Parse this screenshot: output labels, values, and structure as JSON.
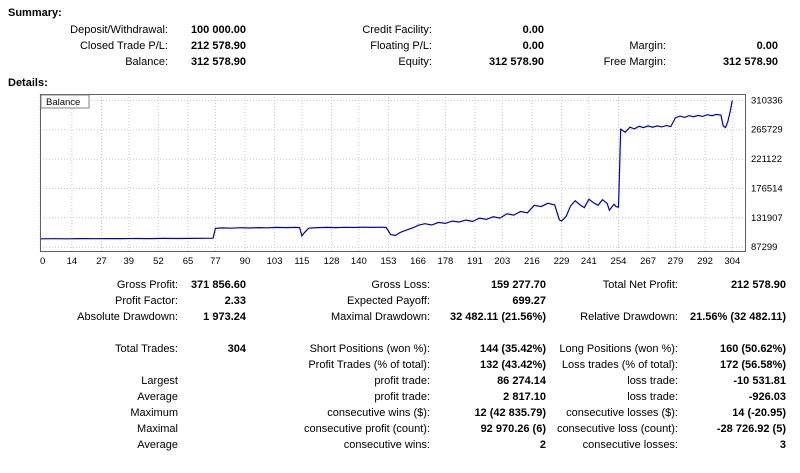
{
  "summary": {
    "heading": "Summary:",
    "rows": [
      [
        {
          "label": "Deposit/Withdrawal:",
          "value": "100 000.00"
        },
        {
          "label": "Credit Facility:",
          "value": "0.00"
        },
        {
          "label": "",
          "value": ""
        }
      ],
      [
        {
          "label": "Closed Trade P/L:",
          "value": "212 578.90"
        },
        {
          "label": "Floating P/L:",
          "value": "0.00"
        },
        {
          "label": "Margin:",
          "value": "0.00"
        }
      ],
      [
        {
          "label": "Balance:",
          "value": "312 578.90"
        },
        {
          "label": "Equity:",
          "value": "312 578.90"
        },
        {
          "label": "Free Margin:",
          "value": "312 578.90"
        }
      ]
    ]
  },
  "details": {
    "heading": "Details:"
  },
  "stats": {
    "rows": [
      [
        {
          "label": "Gross Profit:",
          "value": "371 856.60"
        },
        {
          "label": "Gross Loss:",
          "value": "159 277.70"
        },
        {
          "label": "Total Net Profit:",
          "value": "212 578.90"
        }
      ],
      [
        {
          "label": "Profit Factor:",
          "value": "2.33"
        },
        {
          "label": "Expected Payoff:",
          "value": "699.27"
        },
        {
          "label": "",
          "value": ""
        }
      ],
      [
        {
          "label": "Absolute Drawdown:",
          "value": "1 973.24"
        },
        {
          "label": "Maximal Drawdown:",
          "value": "32 482.11 (21.56%)"
        },
        {
          "label": "Relative Drawdown:",
          "value": "21.56% (32 482.11)"
        }
      ],
      [
        {
          "label": "",
          "value": ""
        },
        {
          "label": "",
          "value": ""
        },
        {
          "label": "",
          "value": ""
        }
      ],
      [
        {
          "label": "Total Trades:",
          "value": "304"
        },
        {
          "label": "Short Positions (won %):",
          "value": "144 (35.42%)"
        },
        {
          "label": "Long Positions (won %):",
          "value": "160 (50.62%)"
        }
      ],
      [
        {
          "label": "",
          "value": ""
        },
        {
          "label": "Profit Trades (% of total):",
          "value": "132 (43.42%)"
        },
        {
          "label": "Loss trades (% of total):",
          "value": "172 (56.58%)"
        }
      ],
      [
        {
          "label": "Largest",
          "value": ""
        },
        {
          "label": "profit trade:",
          "value": "86 274.14"
        },
        {
          "label": "loss trade:",
          "value": "-10 531.81"
        }
      ],
      [
        {
          "label": "Average",
          "value": ""
        },
        {
          "label": "profit trade:",
          "value": "2 817.10"
        },
        {
          "label": "loss trade:",
          "value": "-926.03"
        }
      ],
      [
        {
          "label": "Maximum",
          "value": ""
        },
        {
          "label": "consecutive wins ($):",
          "value": "12 (42 835.79)"
        },
        {
          "label": "consecutive losses ($):",
          "value": "14 (-20.95)"
        }
      ],
      [
        {
          "label": "Maximal",
          "value": ""
        },
        {
          "label": "consecutive profit (count):",
          "value": "92 970.26 (6)"
        },
        {
          "label": "consecutive loss (count):",
          "value": "-28 726.92 (5)"
        }
      ],
      [
        {
          "label": "Average",
          "value": ""
        },
        {
          "label": "consecutive wins:",
          "value": "2"
        },
        {
          "label": "consecutive losses:",
          "value": "3"
        }
      ]
    ]
  },
  "chart_data": {
    "type": "line",
    "title": "Balance",
    "xlabel": "",
    "ylabel": "",
    "legend": "Balance",
    "line_color": "#0000b8",
    "grid_color": "#c8c8c8",
    "border_color": "#606060",
    "xlim": [
      0,
      310
    ],
    "ylim": [
      80000,
      320000
    ],
    "x_ticks": [
      0,
      14,
      27,
      39,
      52,
      65,
      77,
      90,
      103,
      115,
      128,
      140,
      153,
      166,
      178,
      191,
      203,
      216,
      229,
      241,
      254,
      267,
      279,
      292,
      304
    ],
    "y_ticks": [
      87299,
      131907,
      176514,
      221122,
      265729,
      310336
    ],
    "series": [
      {
        "name": "Balance",
        "points": [
          [
            0,
            100000
          ],
          [
            6,
            100200
          ],
          [
            12,
            100100
          ],
          [
            18,
            100300
          ],
          [
            24,
            100200
          ],
          [
            30,
            100400
          ],
          [
            36,
            100300
          ],
          [
            42,
            100500
          ],
          [
            48,
            100400
          ],
          [
            54,
            100600
          ],
          [
            60,
            100500
          ],
          [
            66,
            100700
          ],
          [
            72,
            100800
          ],
          [
            76,
            100900
          ],
          [
            77,
            115800
          ],
          [
            80,
            116600
          ],
          [
            84,
            116200
          ],
          [
            88,
            116900
          ],
          [
            92,
            116500
          ],
          [
            96,
            117100
          ],
          [
            100,
            116800
          ],
          [
            104,
            117300
          ],
          [
            108,
            117000
          ],
          [
            112,
            117400
          ],
          [
            114,
            117100
          ],
          [
            115,
            104500
          ],
          [
            116,
            109000
          ],
          [
            118,
            116200
          ],
          [
            122,
            117000
          ],
          [
            126,
            117300
          ],
          [
            130,
            117100
          ],
          [
            134,
            117500
          ],
          [
            138,
            117200
          ],
          [
            142,
            117600
          ],
          [
            146,
            117300
          ],
          [
            150,
            117600
          ],
          [
            152,
            117200
          ],
          [
            154,
            106500
          ],
          [
            156,
            105000
          ],
          [
            158,
            109500
          ],
          [
            161,
            113500
          ],
          [
            164,
            117000
          ],
          [
            166,
            120500
          ],
          [
            169,
            123000
          ],
          [
            172,
            121000
          ],
          [
            175,
            125000
          ],
          [
            178,
            123500
          ],
          [
            181,
            127000
          ],
          [
            184,
            125500
          ],
          [
            187,
            128500
          ],
          [
            190,
            126500
          ],
          [
            193,
            131500
          ],
          [
            196,
            129500
          ],
          [
            199,
            133500
          ],
          [
            202,
            131500
          ],
          [
            205,
            138000
          ],
          [
            208,
            136000
          ],
          [
            211,
            141500
          ],
          [
            214,
            139500
          ],
          [
            217,
            151000
          ],
          [
            220,
            149000
          ],
          [
            223,
            154000
          ],
          [
            226,
            151500
          ],
          [
            228,
            129000
          ],
          [
            229,
            127000
          ],
          [
            231,
            134000
          ],
          [
            233,
            150000
          ],
          [
            235,
            158000
          ],
          [
            237,
            152000
          ],
          [
            239,
            147500
          ],
          [
            241,
            160000
          ],
          [
            243,
            155000
          ],
          [
            245,
            151000
          ],
          [
            247,
            159500
          ],
          [
            249,
            154000
          ],
          [
            250,
            143500
          ],
          [
            252,
            152500
          ],
          [
            253,
            149000
          ],
          [
            254,
            148000
          ],
          [
            255,
            266500
          ],
          [
            257,
            262000
          ],
          [
            259,
            269500
          ],
          [
            261,
            267000
          ],
          [
            263,
            271000
          ],
          [
            265,
            269000
          ],
          [
            267,
            271500
          ],
          [
            269,
            269500
          ],
          [
            271,
            271500
          ],
          [
            273,
            270000
          ],
          [
            275,
            272000
          ],
          [
            277,
            270500
          ],
          [
            279,
            284000
          ],
          [
            281,
            286500
          ],
          [
            283,
            284500
          ],
          [
            285,
            287000
          ],
          [
            287,
            285500
          ],
          [
            289,
            287500
          ],
          [
            291,
            286000
          ],
          [
            293,
            288500
          ],
          [
            295,
            287000
          ],
          [
            297,
            289000
          ],
          [
            299,
            288000
          ],
          [
            300,
            271500
          ],
          [
            301,
            269000
          ],
          [
            302,
            278000
          ],
          [
            303,
            293000
          ],
          [
            304,
            310336
          ]
        ]
      }
    ]
  }
}
